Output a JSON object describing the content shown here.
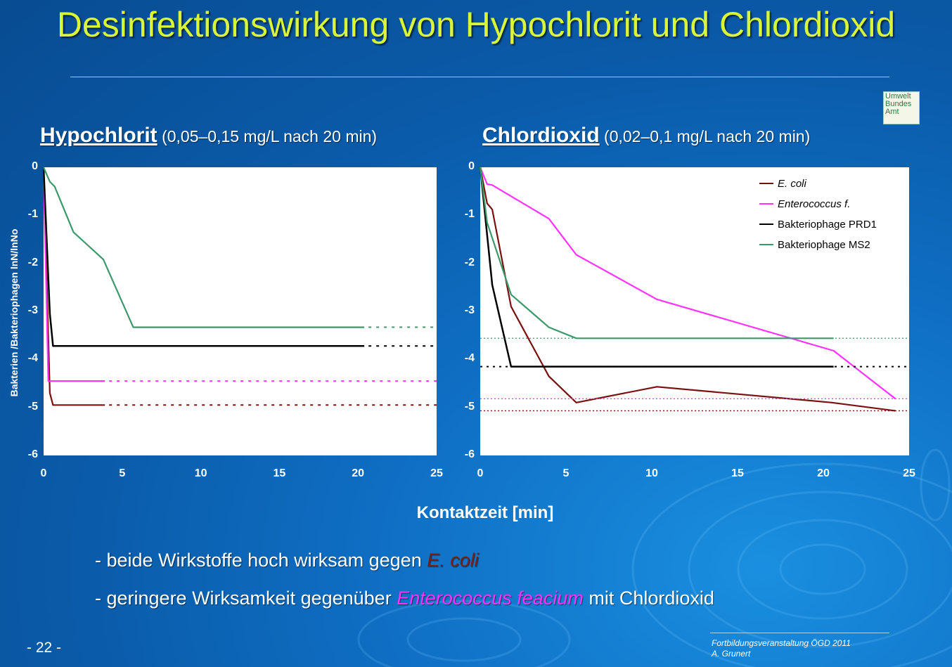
{
  "title": "Desinfektionswirkung von Hypochlorit und Chlordioxid",
  "logo": {
    "line1": "Umwelt",
    "line2": "Bundes",
    "line3": "Amt"
  },
  "panels": [
    {
      "heading": "Hypochlorit",
      "range": "(0,05–0,15 mg/L nach 20 min)"
    },
    {
      "heading": "Chlordioxid",
      "range": "(0,02–0,1 mg/L nach 20 min)"
    }
  ],
  "ylabel": "Bakterien /Bakteriophagen lnN/lnNo",
  "xlabel": "Kontaktzeit [min]",
  "bullets": {
    "b1_prefix": "- beide Wirkstoffe hoch wirksam gegen ",
    "b1_species": "E. coli",
    "b2_prefix": "- geringere Wirksamkeit gegenüber ",
    "b2_species": "Enterococcus feacium",
    "b2_suffix": " mit Chlordioxid"
  },
  "page_number": "- 22 -",
  "footer": {
    "line1": "Fortbildungsveranstaltung ÖGD 2011",
    "line2": "A. Grunert"
  },
  "colors": {
    "ecoli": "#7a1010",
    "enterococcus": "#ff33ff",
    "prd1": "#000000",
    "ms2": "#3a9a6a",
    "title": "#d8f53a"
  },
  "chart_data": [
    {
      "type": "line",
      "xlim": [
        0,
        25
      ],
      "ylim": [
        -6,
        0
      ],
      "xticks": [
        0,
        5,
        10,
        15,
        20,
        25
      ],
      "yticks": [
        0,
        -1,
        -2,
        -3,
        -4,
        -5,
        -6
      ],
      "series": [
        {
          "key": "ecoli",
          "x": [
            0,
            0.4,
            0.6,
            3.9
          ],
          "y": [
            0,
            -4.7,
            -4.95,
            -4.95
          ],
          "plateau": -4.95
        },
        {
          "key": "enterococcus",
          "x": [
            0,
            0.3,
            3.9
          ],
          "y": [
            0,
            -4.45,
            -4.45
          ],
          "plateau": -4.45
        },
        {
          "key": "prd1",
          "x": [
            0,
            0.4,
            0.6,
            20.4
          ],
          "y": [
            0,
            -3.05,
            -3.72,
            -3.72
          ],
          "plateau": -3.72
        },
        {
          "key": "ms2",
          "x": [
            0,
            0.4,
            0.7,
            1.9,
            3.8,
            5.7,
            20.4
          ],
          "y": [
            0,
            -0.3,
            -0.4,
            -1.35,
            -1.92,
            -3.33,
            -3.33
          ],
          "plateau": -3.33
        }
      ]
    },
    {
      "type": "line",
      "xlim": [
        0,
        25
      ],
      "ylim": [
        -6,
        0
      ],
      "xticks": [
        0,
        5,
        10,
        15,
        20,
        25
      ],
      "yticks": [
        0,
        -1,
        -2,
        -3,
        -4,
        -5,
        -6
      ],
      "legend_position": "top-right",
      "series": [
        {
          "key": "ecoli",
          "name": "E. coli",
          "x": [
            0,
            0.4,
            0.7,
            1.8,
            4.0,
            5.6,
            10.3,
            20.5,
            24.2
          ],
          "y": [
            0,
            -0.75,
            -0.88,
            -2.9,
            -4.35,
            -4.9,
            -4.57,
            -4.9,
            -5.07
          ],
          "plateau": -5.07
        },
        {
          "key": "enterococcus",
          "name": "Enterococcus f.",
          "x": [
            0,
            0.4,
            0.7,
            4.0,
            5.6,
            10.3,
            20.6,
            24.2
          ],
          "y": [
            0,
            -0.35,
            -0.37,
            -1.07,
            -1.82,
            -2.75,
            -3.82,
            -4.82
          ],
          "plateau": -4.82
        },
        {
          "key": "prd1",
          "name": "Bakteriophage PRD1",
          "x": [
            0,
            0.7,
            1.8,
            20.6
          ],
          "y": [
            0,
            -2.45,
            -4.15,
            -4.15
          ],
          "plateau": -4.15
        },
        {
          "key": "ms2",
          "name": "Bakteriophage MS2",
          "x": [
            0,
            0.4,
            1.8,
            4.0,
            5.6,
            20.6
          ],
          "y": [
            0,
            -1.15,
            -2.65,
            -3.33,
            -3.56,
            -3.56
          ],
          "plateau": -3.56
        }
      ]
    }
  ]
}
